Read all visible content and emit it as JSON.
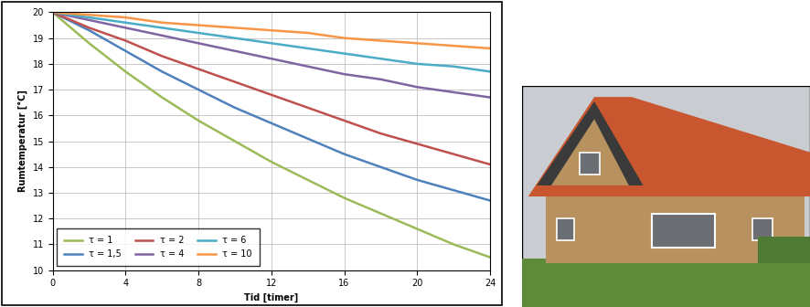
{
  "chart_data": {
    "type": "line",
    "x_label": "Tid [timer]",
    "y_label": "Rumtemperatur [°C]",
    "x": [
      0,
      2,
      4,
      6,
      8,
      10,
      12,
      14,
      16,
      18,
      20,
      22,
      24
    ],
    "xlim": [
      0,
      24
    ],
    "xticks": [
      0,
      4,
      8,
      12,
      16,
      20,
      24
    ],
    "ylim": [
      10,
      20
    ],
    "yticks": [
      10,
      11,
      12,
      13,
      14,
      15,
      16,
      17,
      18,
      19,
      20
    ],
    "grid": true,
    "legend": "lower left",
    "series": [
      {
        "name": "τ = 1",
        "color": "#9bbb59",
        "values": [
          20,
          18.8,
          17.7,
          16.7,
          15.8,
          15.0,
          14.2,
          13.5,
          12.8,
          12.2,
          11.6,
          11.0,
          10.5
        ]
      },
      {
        "name": "τ = 1,5",
        "color": "#4f81bd",
        "values": [
          20,
          19.3,
          18.5,
          17.7,
          17.0,
          16.3,
          15.7,
          15.1,
          14.5,
          14.0,
          13.5,
          13.1,
          12.7
        ]
      },
      {
        "name": "τ = 2",
        "color": "#c0504d",
        "values": [
          20,
          19.4,
          18.9,
          18.3,
          17.8,
          17.3,
          16.8,
          16.3,
          15.8,
          15.3,
          14.9,
          14.5,
          14.1
        ]
      },
      {
        "name": "τ = 4",
        "color": "#8064a2",
        "values": [
          20,
          19.7,
          19.4,
          19.1,
          18.8,
          18.5,
          18.2,
          17.9,
          17.6,
          17.4,
          17.1,
          16.9,
          16.7
        ]
      },
      {
        "name": "τ = 6",
        "color": "#4bacc6",
        "values": [
          20,
          19.8,
          19.6,
          19.4,
          19.2,
          19.0,
          18.8,
          18.6,
          18.4,
          18.2,
          18.0,
          17.9,
          17.7
        ]
      },
      {
        "name": "τ = 10",
        "color": "#f79646",
        "values": [
          20,
          19.9,
          19.8,
          19.6,
          19.5,
          19.4,
          19.3,
          19.2,
          19.0,
          18.9,
          18.8,
          18.7,
          18.6
        ]
      }
    ]
  }
}
